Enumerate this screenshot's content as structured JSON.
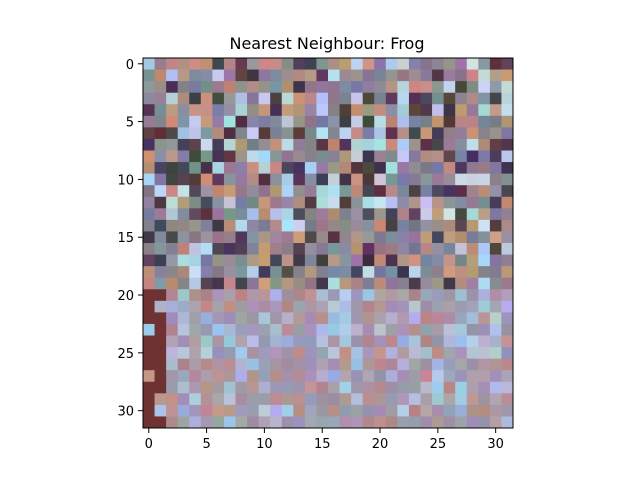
{
  "chart_data": {
    "type": "heatmap",
    "title": "Nearest Neighbour: Frog",
    "xlabel": "",
    "ylabel": "",
    "image_size": [
      32,
      32
    ],
    "xlim": [
      -0.5,
      31.5
    ],
    "ylim": [
      31.5,
      -0.5
    ],
    "x_ticks": [
      0,
      5,
      10,
      15,
      20,
      25,
      30
    ],
    "y_ticks": [
      0,
      5,
      10,
      15,
      20,
      25,
      30
    ],
    "x_tick_labels": [
      "0",
      "5",
      "10",
      "15",
      "20",
      "25",
      "30"
    ],
    "y_tick_labels": [
      "0",
      "5",
      "10",
      "15",
      "20",
      "25",
      "30"
    ],
    "grid": false,
    "legend": "none"
  }
}
